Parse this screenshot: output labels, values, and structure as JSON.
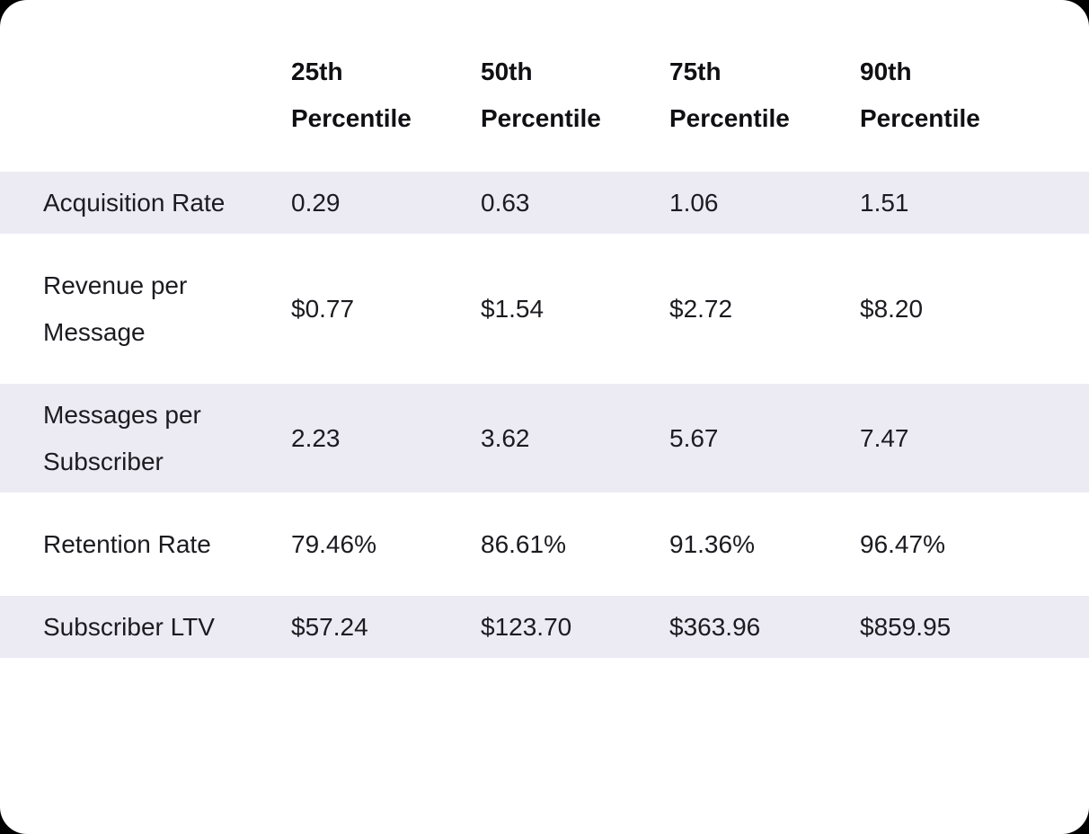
{
  "page": {
    "background_color": "#000000",
    "card_background_color": "#FFFFFF",
    "stripe_color": "#ECEBF4",
    "header_text_color": "#101014",
    "body_text_color": "#1B1B20"
  },
  "table": {
    "columns": [
      "25th Percentile",
      "50th Percentile",
      "75th Percentile",
      "90th Percentile"
    ],
    "rows": [
      {
        "label": "Acquisition Rate",
        "values": [
          "0.29",
          "0.63",
          "1.06",
          "1.51"
        ]
      },
      {
        "label": "Revenue per Message",
        "values": [
          "$0.77",
          "$1.54",
          "$2.72",
          "$8.20"
        ]
      },
      {
        "label": "Messages per Subscriber",
        "values": [
          "2.23",
          "3.62",
          "5.67",
          "7.47"
        ]
      },
      {
        "label": "Retention Rate",
        "values": [
          "79.46%",
          "86.61%",
          "91.36%",
          "96.47%"
        ]
      },
      {
        "label": "Subscriber LTV",
        "values": [
          "$57.24",
          "$123.70",
          "$363.96",
          "$859.95"
        ]
      }
    ]
  },
  "chart_data": {
    "type": "table",
    "title": "",
    "columns": [
      "",
      "25th Percentile",
      "50th Percentile",
      "75th Percentile",
      "90th Percentile"
    ],
    "rows": [
      [
        "Acquisition Rate",
        "0.29",
        "0.63",
        "1.06",
        "1.51"
      ],
      [
        "Revenue per Message",
        "$0.77",
        "$1.54",
        "$2.72",
        "$8.20"
      ],
      [
        "Messages per Subscriber",
        "2.23",
        "3.62",
        "5.67",
        "7.47"
      ],
      [
        "Retention Rate",
        "79.46%",
        "86.61%",
        "91.36%",
        "96.47%"
      ],
      [
        "Subscriber LTV",
        "$57.24",
        "$123.70",
        "$363.96",
        "$859.95"
      ]
    ]
  }
}
